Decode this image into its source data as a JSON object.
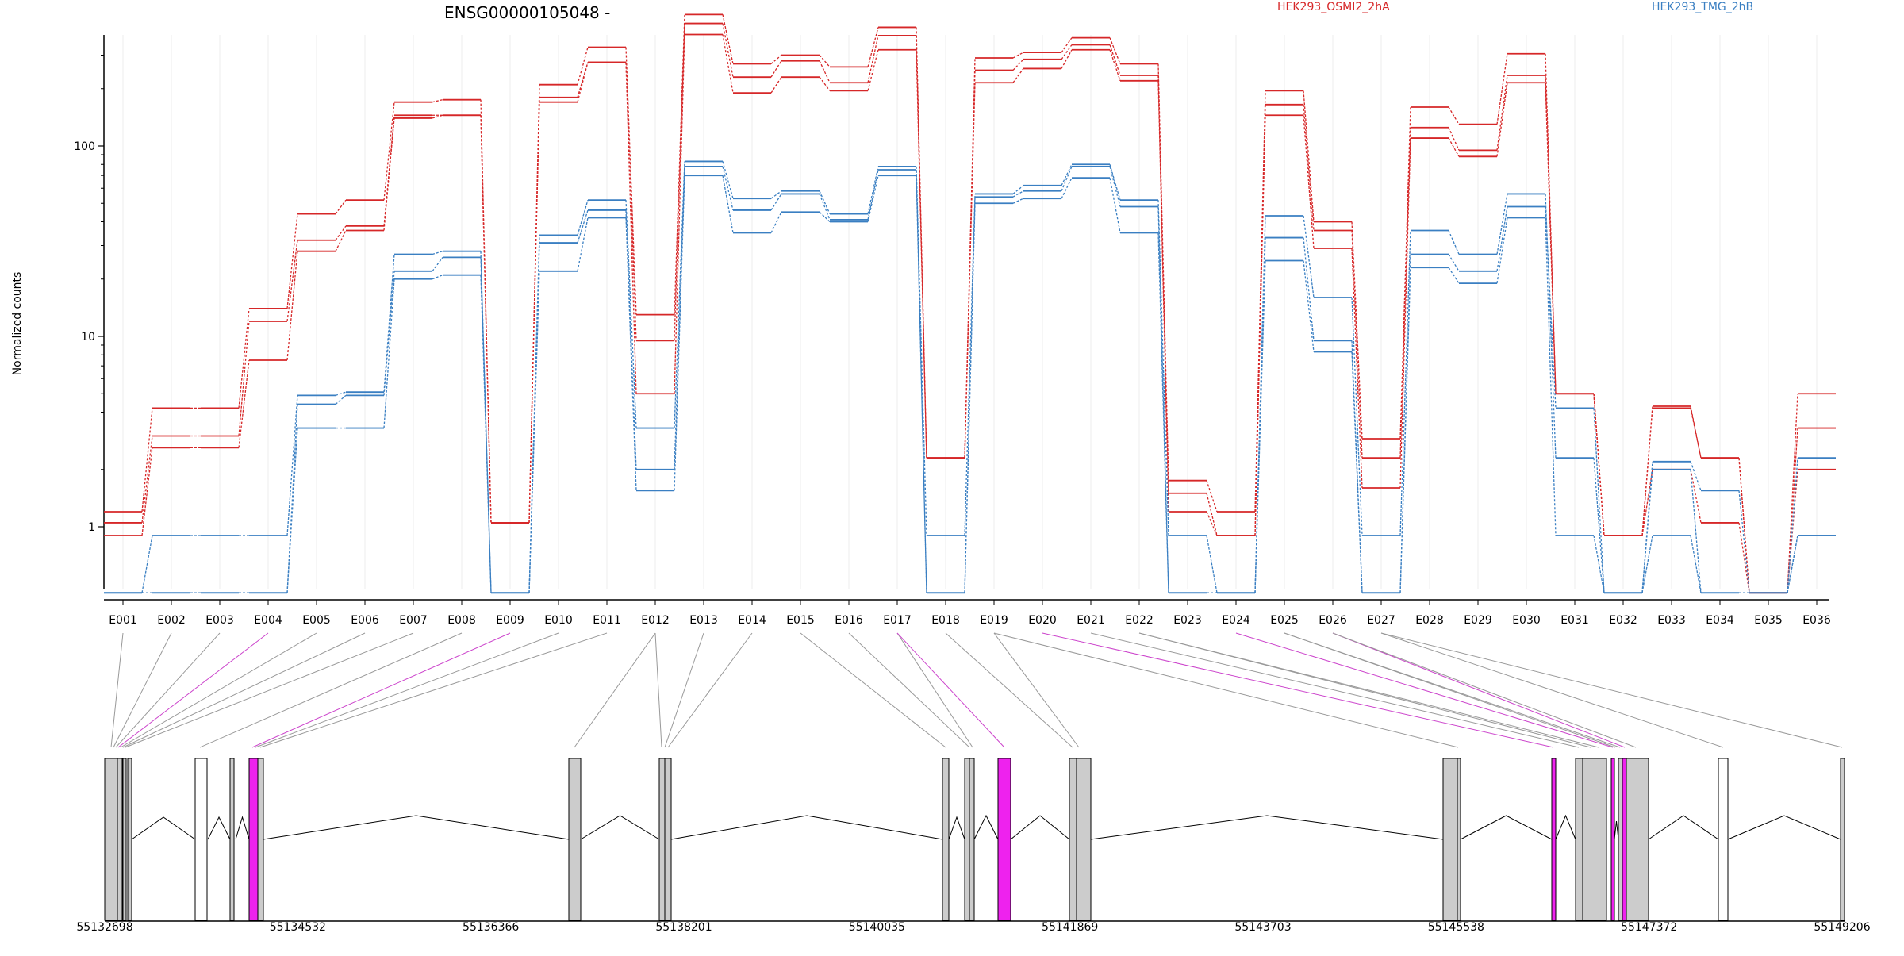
{
  "chart_data": {
    "type": "line",
    "title": "ENSG00000105048 -",
    "ylabel": "Normalized counts",
    "y_scale": "log",
    "y_ticks": [
      {
        "value": 1,
        "label": "1"
      },
      {
        "value": 10,
        "label": "10"
      },
      {
        "value": 100,
        "label": "100"
      }
    ],
    "ylim": [
      0.5,
      620
    ],
    "legend_placement": "top",
    "categories": [
      "E001",
      "E002",
      "E003",
      "E004",
      "E005",
      "E006",
      "E007",
      "E008",
      "E009",
      "E010",
      "E011",
      "E012",
      "E013",
      "E014",
      "E015",
      "E016",
      "E017",
      "E018",
      "E019",
      "E020",
      "E021",
      "E022",
      "E023",
      "E024",
      "E025",
      "E026",
      "E027",
      "E028",
      "E029",
      "E030",
      "E031",
      "E032",
      "E033",
      "E034",
      "E035",
      "E036"
    ],
    "groups": [
      {
        "label": "HEK293_OSMI2_2hA",
        "color": "#d62728"
      },
      {
        "label": "HEK293_TMG_2hB",
        "color": "#3a7fc2"
      }
    ],
    "series": [
      {
        "group": 0,
        "color": "#d62728",
        "values": [
          1.2,
          4.2,
          4.2,
          14,
          44,
          52,
          170,
          175,
          1.05,
          210,
          330,
          13,
          490,
          270,
          300,
          260,
          420,
          2.3,
          290,
          310,
          370,
          270,
          1.75,
          1.2,
          195,
          40,
          2.9,
          160,
          130,
          305,
          5,
          0.9,
          4.3,
          2.3,
          0.45,
          5
        ]
      },
      {
        "group": 0,
        "color": "#d62728",
        "values": [
          1.05,
          3.0,
          3.0,
          12,
          32,
          38,
          145,
          145,
          1.05,
          180,
          275,
          9.5,
          440,
          230,
          280,
          215,
          380,
          2.3,
          250,
          285,
          340,
          235,
          1.5,
          0.9,
          165,
          36,
          2.3,
          125,
          95,
          235,
          5,
          0.9,
          4.2,
          2.3,
          0.45,
          3.3
        ]
      },
      {
        "group": 0,
        "color": "#d62728",
        "values": [
          0.9,
          2.6,
          2.6,
          7.5,
          28,
          36,
          140,
          145,
          1.05,
          170,
          275,
          5,
          385,
          190,
          230,
          195,
          320,
          2.3,
          215,
          255,
          320,
          220,
          1.2,
          0.9,
          145,
          29,
          1.6,
          110,
          88,
          215,
          5,
          0.9,
          2.0,
          1.05,
          0.45,
          2.0
        ]
      },
      {
        "group": 1,
        "color": "#3a7fc2",
        "values": [
          0.45,
          0.9,
          0.9,
          0.9,
          4.9,
          5.1,
          27,
          28,
          0.45,
          34,
          52,
          3.3,
          83,
          53,
          58,
          44,
          78,
          0.9,
          56,
          62,
          80,
          52,
          0.9,
          0.45,
          43,
          16,
          0.9,
          36,
          27,
          56,
          2.3,
          0.45,
          0.9,
          0.45,
          0.45,
          0.9
        ]
      },
      {
        "group": 1,
        "color": "#3a7fc2",
        "values": [
          0.45,
          0.45,
          0.45,
          0.45,
          4.4,
          4.9,
          22,
          26,
          0.45,
          31,
          46,
          2.0,
          78,
          46,
          56,
          41,
          75,
          0.45,
          54,
          58,
          78,
          48,
          0.45,
          0.45,
          33,
          9.5,
          0.45,
          27,
          22,
          48,
          4.2,
          0.45,
          2.2,
          1.55,
          0.45,
          0.9
        ]
      },
      {
        "group": 1,
        "color": "#3a7fc2",
        "values": [
          0.45,
          0.45,
          0.45,
          0.45,
          3.3,
          3.3,
          20,
          21,
          0.45,
          22,
          42,
          1.55,
          70,
          35,
          45,
          40,
          70,
          0.45,
          50,
          53,
          68,
          35,
          0.45,
          0.45,
          25,
          8.3,
          0.45,
          23,
          19,
          42,
          0.9,
          0.45,
          2.0,
          0.45,
          0.45,
          2.3
        ]
      }
    ],
    "gene_model": {
      "start_label": "55132698",
      "axis_labels": [
        "55132698",
        "55134532",
        "55136366",
        "55138201",
        "55140035",
        "55141869",
        "55143703",
        "55145538",
        "55147372",
        "55149206"
      ],
      "exon_links": [
        0,
        1,
        2,
        3,
        4,
        5,
        6,
        7,
        8,
        9,
        10,
        11,
        11,
        12,
        13,
        14,
        15,
        16,
        16,
        17,
        18,
        18,
        19,
        20,
        21,
        21,
        23,
        24,
        24,
        25,
        25,
        26,
        26,
        27,
        28,
        29,
        30,
        31
      ]
    }
  }
}
